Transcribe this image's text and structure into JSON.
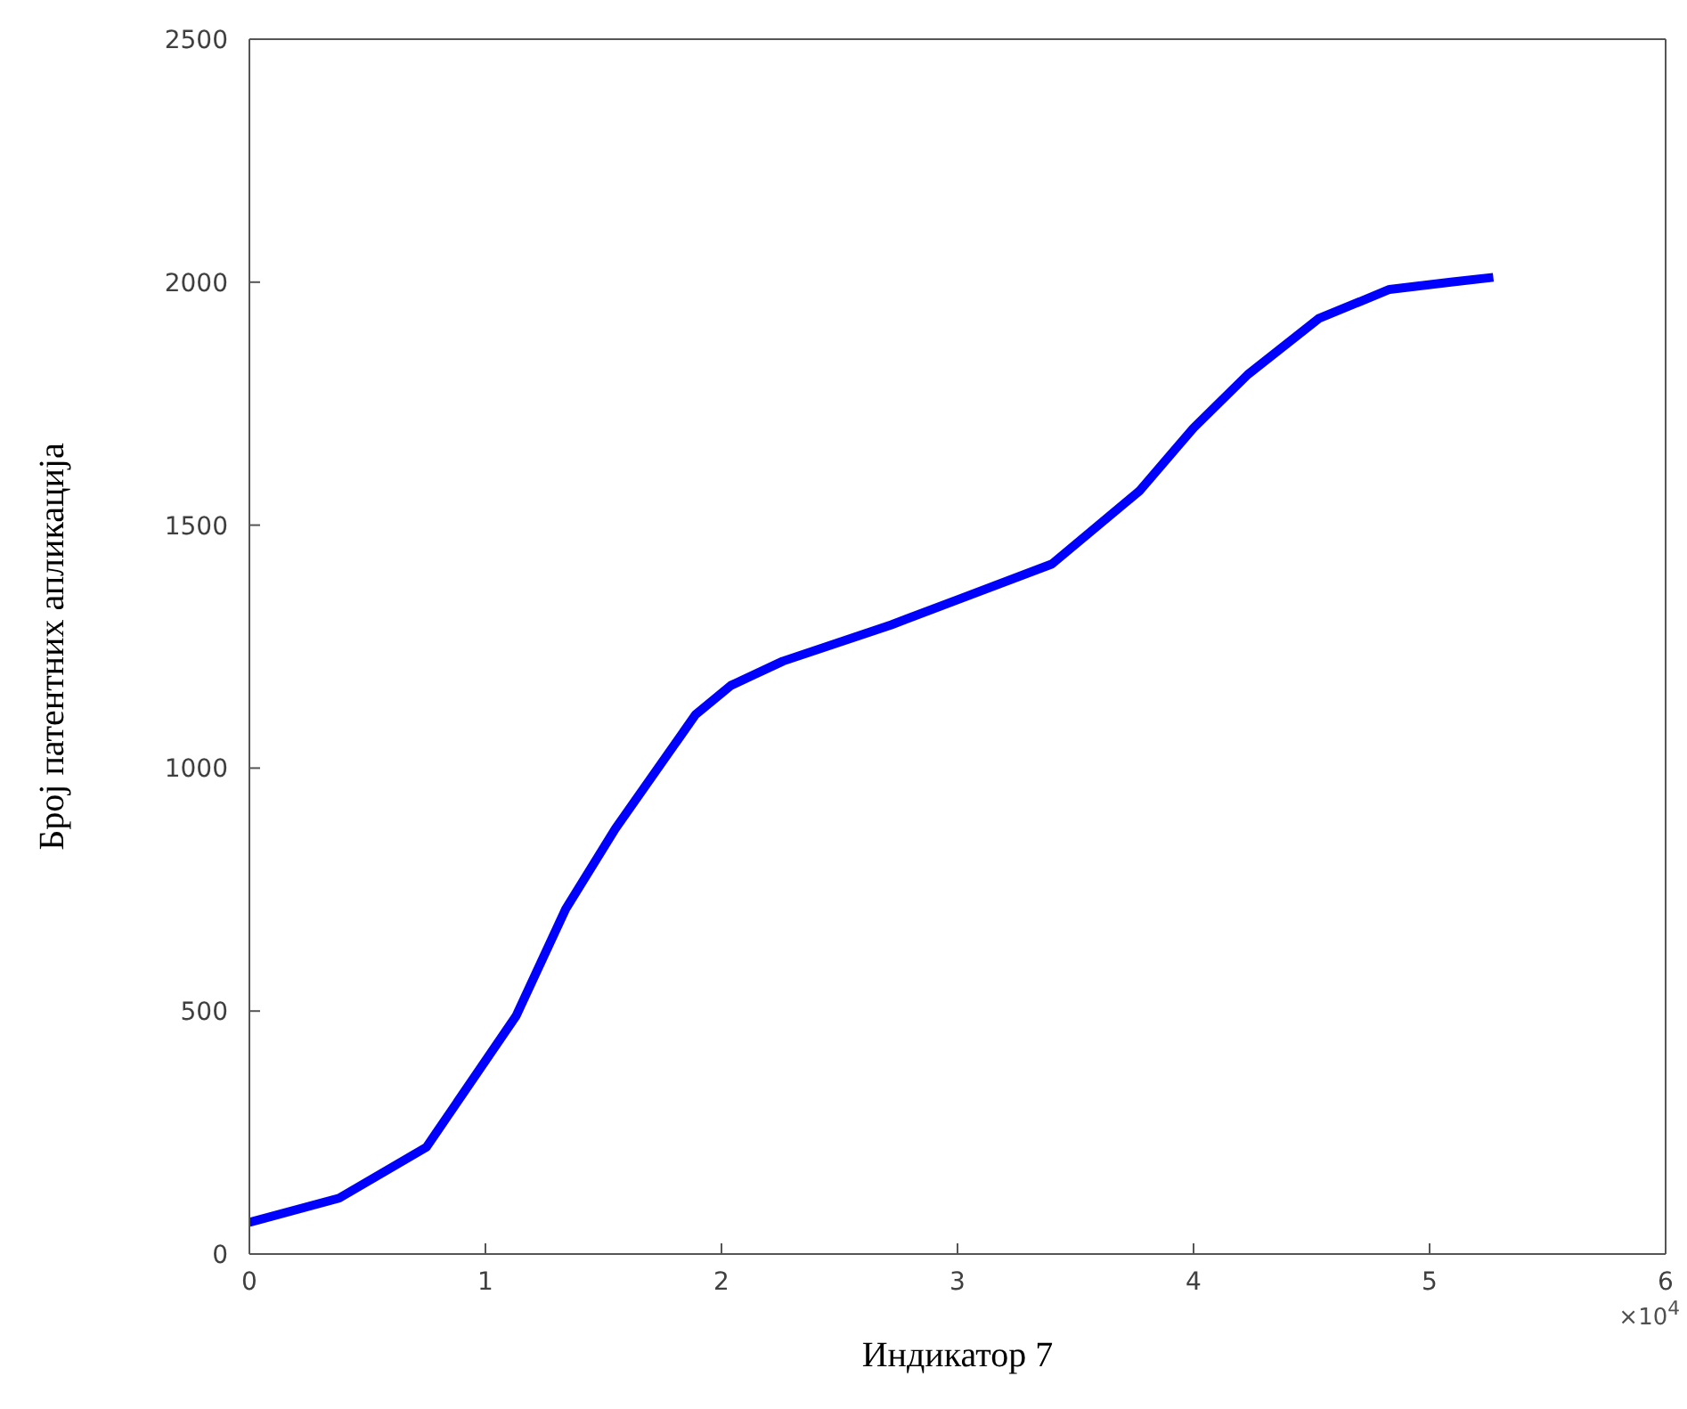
{
  "chart_data": {
    "type": "line",
    "xlabel": "Индикатор 7",
    "ylabel": "Број патентних апликација",
    "x": [
      0,
      0.38,
      0.75,
      1.13,
      1.34,
      1.55,
      1.89,
      2.04,
      2.26,
      2.72,
      3.02,
      3.4,
      3.77,
      4,
      4.23,
      4.53,
      4.83,
      5.09,
      5.27
    ],
    "series": [
      {
        "color": "#0000ff",
        "values": [
          65,
          115,
          220,
          490,
          710,
          875,
          1110,
          1170,
          1220,
          1295,
          1350,
          1420,
          1570,
          1700,
          1810,
          1925,
          1985,
          2000,
          2010
        ]
      }
    ],
    "xlim": [
      0,
      6
    ],
    "xticks": [
      0,
      1,
      2,
      3,
      4,
      5,
      6
    ],
    "ylim": [
      0,
      2500
    ],
    "yticks": [
      0,
      500,
      1000,
      1500,
      2000,
      2500
    ],
    "grid": false,
    "legend": false,
    "marker": "none",
    "line_style": "solid",
    "annotations": [
      "×10$^{4}$"
    ]
  }
}
